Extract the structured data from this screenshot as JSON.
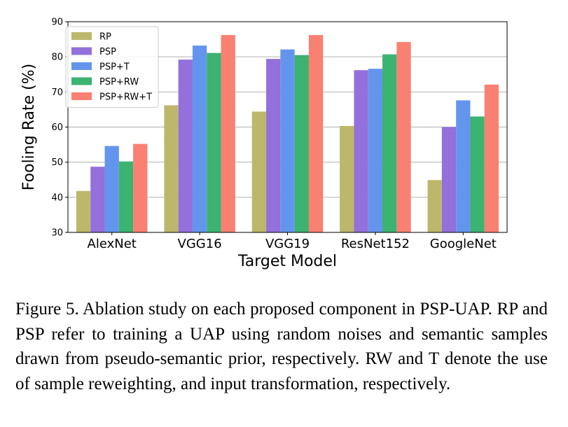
{
  "chart_data": {
    "type": "bar",
    "title": "",
    "xlabel": "Target Model",
    "ylabel": "Fooling Rate (%)",
    "ylim": [
      30,
      90
    ],
    "yticks": [
      30,
      40,
      50,
      60,
      70,
      80,
      90
    ],
    "grid": "y",
    "legend_position": "top-left",
    "categories": [
      "AlexNet",
      "VGG16",
      "VGG19",
      "ResNet152",
      "GoogleNet"
    ],
    "series": [
      {
        "name": "RP",
        "color": "#BDB76B",
        "values": [
          41.8,
          66.2,
          64.4,
          60.3,
          44.9
        ]
      },
      {
        "name": "PSP",
        "color": "#9370DB",
        "values": [
          48.7,
          79.2,
          79.4,
          76.2,
          60.0
        ]
      },
      {
        "name": "PSP+T",
        "color": "#6495ED",
        "values": [
          54.6,
          83.2,
          82.1,
          76.6,
          67.6
        ]
      },
      {
        "name": "PSP+RW",
        "color": "#3CB371",
        "values": [
          50.2,
          81.1,
          80.5,
          80.7,
          63.0
        ]
      },
      {
        "name": "PSP+RW+T",
        "color": "#FA8072",
        "values": [
          55.2,
          86.2,
          86.2,
          84.2,
          72.1
        ]
      }
    ]
  },
  "caption": {
    "text": "Figure 5.  Ablation study on each proposed component in PSP-UAP. RP and PSP refer to training a UAP using random noises and semantic samples drawn from pseudo-semantic prior, respectively. RW and T denote the use of sample reweighting, and input transformation, respectively."
  }
}
